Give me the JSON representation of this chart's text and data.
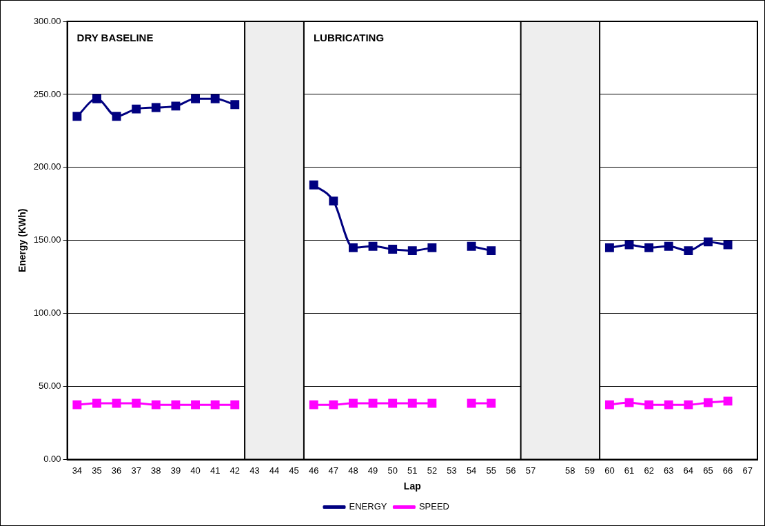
{
  "chart_data": {
    "type": "line",
    "xlabel": "Lap",
    "ylabel": "Energy (KWh)",
    "categories": [
      "34",
      "35",
      "36",
      "37",
      "38",
      "39",
      "40",
      "41",
      "42",
      "43",
      "44",
      "45",
      "46",
      "47",
      "48",
      "49",
      "50",
      "51",
      "52",
      "53",
      "54",
      "55",
      "56",
      "57",
      null,
      "58",
      "59",
      "60",
      "61",
      "62",
      "63",
      "64",
      "65",
      "66",
      "67"
    ],
    "series": [
      {
        "name": "ENERGY",
        "color": "#000080",
        "values": [
          235,
          247,
          235,
          240,
          241,
          242,
          247,
          247,
          243,
          null,
          null,
          null,
          188,
          177,
          145,
          146,
          144,
          143,
          145,
          null,
          146,
          143,
          null,
          null,
          null,
          null,
          null,
          145,
          147,
          145,
          146,
          143,
          149,
          147,
          null
        ]
      },
      {
        "name": "SPEED",
        "color": "#ff00ff",
        "values": [
          37.5,
          38.5,
          38.5,
          38.5,
          37.5,
          37.5,
          37.5,
          37.5,
          37.5,
          null,
          null,
          null,
          37.5,
          37.5,
          38.5,
          38.5,
          38.5,
          38.5,
          38.5,
          null,
          38.5,
          38.5,
          null,
          null,
          null,
          null,
          null,
          37.5,
          39,
          37.5,
          37.5,
          37.5,
          39,
          40,
          null
        ]
      }
    ],
    "ylim": [
      0,
      300
    ],
    "yticks": [
      {
        "value": 0,
        "label": "0.00"
      },
      {
        "value": 50,
        "label": "50.00"
      },
      {
        "value": 100,
        "label": "100.00"
      },
      {
        "value": 150,
        "label": "150.00"
      },
      {
        "value": 200,
        "label": "200.00"
      },
      {
        "value": 250,
        "label": "250.00"
      },
      {
        "value": 300,
        "label": "300.00"
      }
    ],
    "bands": [
      {
        "axis": "x",
        "from": "43",
        "to": "45",
        "color": "#eeeeee"
      },
      {
        "axis": "x",
        "from": "57",
        "to": "59",
        "color": "#eeeeee"
      }
    ],
    "annotations": [
      "DRY BASELINE",
      "LUBRICATING"
    ],
    "grid": "y",
    "legend": "bottom",
    "marker": "square",
    "line_style": "solid"
  }
}
